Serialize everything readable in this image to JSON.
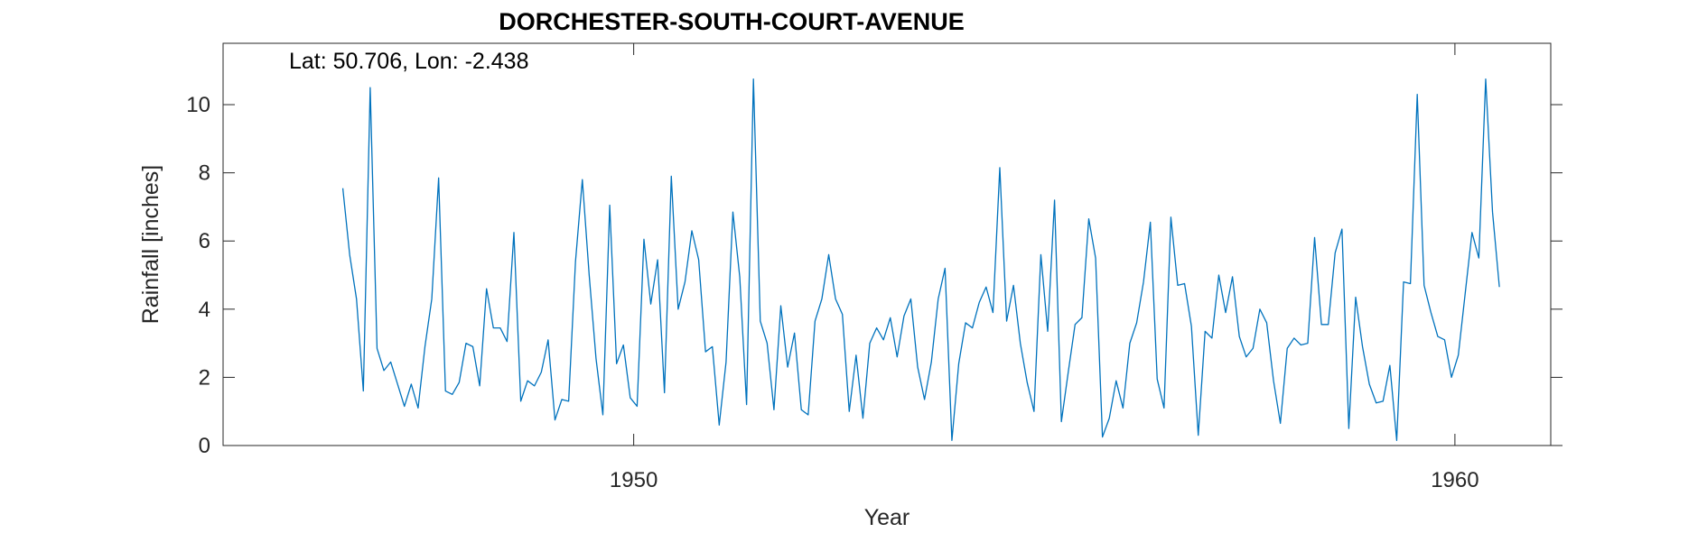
{
  "chart_data": {
    "type": "line",
    "title": "DORCHESTER-SOUTH-COURT-AVENUE",
    "xlabel": "Year",
    "ylabel": "Rainfall [inches]",
    "annotation": "Lat: 50.706, Lon: -2.438",
    "xlim": [
      1945.0,
      1961.167
    ],
    "ylim": [
      0,
      11.8
    ],
    "x_ticks": [
      1950,
      1960
    ],
    "x_tick_labels": [
      "1950",
      "1960"
    ],
    "y_ticks": [
      0,
      2,
      4,
      6,
      8,
      10
    ],
    "y_tick_labels": [
      "0",
      "2",
      "4",
      "6",
      "8",
      "10"
    ],
    "grid": false,
    "line_color": "#0072BD",
    "series": [
      {
        "x_start": 1946.458,
        "x_step_months": 1,
        "values": [
          7.55,
          5.6,
          4.3,
          1.6,
          10.5,
          2.85,
          2.2,
          2.45,
          1.8,
          1.15,
          1.8,
          1.1,
          2.9,
          4.3,
          7.85,
          1.6,
          1.5,
          1.85,
          3.0,
          2.9,
          1.75,
          4.6,
          3.45,
          3.45,
          3.05,
          6.25,
          1.3,
          1.9,
          1.75,
          2.15,
          3.1,
          0.75,
          1.35,
          1.3,
          5.4,
          7.8,
          5.0,
          2.55,
          0.9,
          7.05,
          2.4,
          2.95,
          1.4,
          1.15,
          6.05,
          4.15,
          5.45,
          1.55,
          7.9,
          4.0,
          4.8,
          6.3,
          5.45,
          2.75,
          2.9,
          0.6,
          2.45,
          6.85,
          4.95,
          1.2,
          10.75,
          3.65,
          3.0,
          1.05,
          4.1,
          2.3,
          3.3,
          1.05,
          0.9,
          3.65,
          4.3,
          5.6,
          4.3,
          3.85,
          1.0,
          2.65,
          0.8,
          3.0,
          3.45,
          3.1,
          3.75,
          2.6,
          3.8,
          4.3,
          2.3,
          1.35,
          2.45,
          4.3,
          5.2,
          0.15,
          2.4,
          3.6,
          3.45,
          4.2,
          4.65,
          3.9,
          8.15,
          3.65,
          4.7,
          3.0,
          1.85,
          1.0,
          5.6,
          3.35,
          7.2,
          0.7,
          2.15,
          3.55,
          3.75,
          6.65,
          5.5,
          0.25,
          0.8,
          1.9,
          1.1,
          3.0,
          3.6,
          4.8,
          6.55,
          1.95,
          1.1,
          6.7,
          4.7,
          4.75,
          3.5,
          0.3,
          3.35,
          3.15,
          5.0,
          3.9,
          4.95,
          3.2,
          2.6,
          2.85,
          4.0,
          3.6,
          1.9,
          0.65,
          2.85,
          3.15,
          2.95,
          3.0,
          6.1,
          3.55,
          3.55,
          5.65,
          6.35,
          0.5,
          4.35,
          2.9,
          1.8,
          1.25,
          1.3,
          2.35,
          0.15,
          4.8,
          4.75,
          10.3,
          4.7,
          3.9,
          3.2,
          3.1,
          2.0,
          2.65,
          4.45,
          6.25,
          5.5,
          10.75,
          6.85,
          4.65
        ]
      }
    ]
  }
}
